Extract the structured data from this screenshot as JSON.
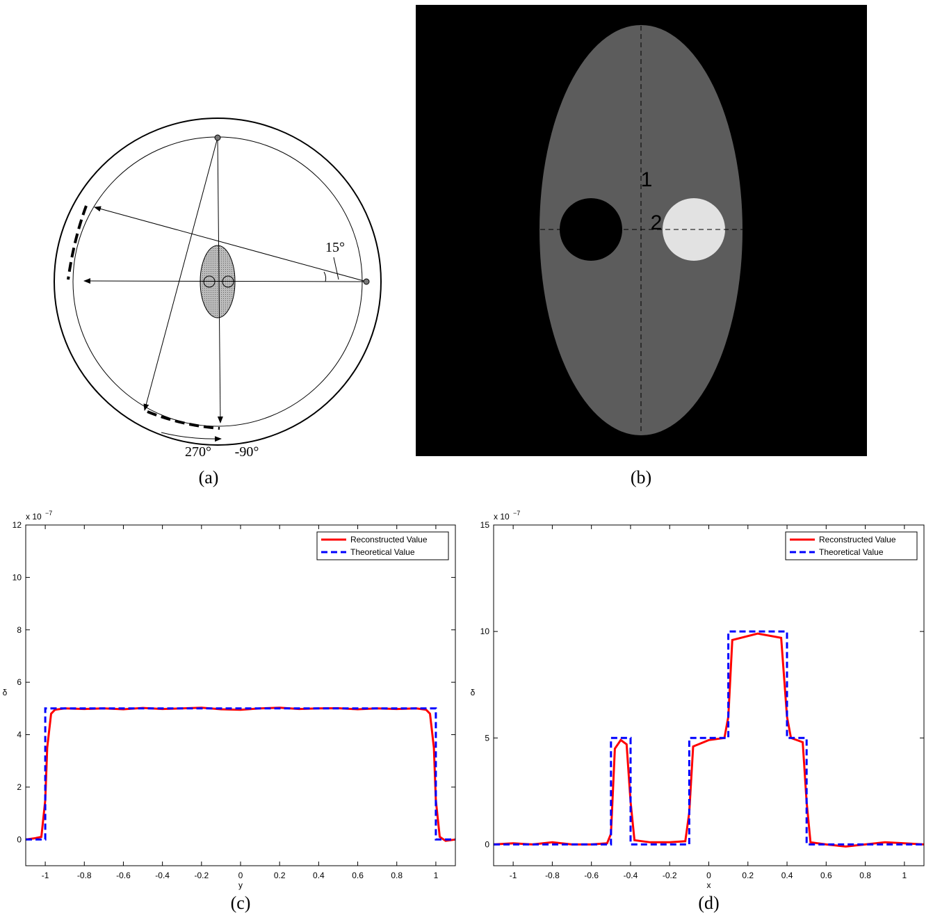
{
  "diagram": {
    "angle_label": "15°",
    "start_label": "270°",
    "end_label": "-90°",
    "caption": "(a)"
  },
  "image": {
    "line1_label": "1",
    "line2_label": "2",
    "caption": "(b)"
  },
  "chart_data": [
    {
      "type": "line",
      "caption": "(c)",
      "xlabel": "y",
      "ylabel": "δ",
      "exponent_base": "x 10",
      "exponent_power": "−7",
      "xlim": [
        -1.1,
        1.1
      ],
      "ylim": [
        -1,
        12
      ],
      "xticks": [
        -1,
        -0.8,
        -0.6,
        -0.4,
        -0.2,
        0,
        0.2,
        0.4,
        0.6,
        0.8,
        1
      ],
      "yticks": [
        0,
        2,
        4,
        6,
        8,
        10,
        12
      ],
      "legend": "upper right",
      "series": [
        {
          "name": "Reconstructed Value",
          "color": "#ff0000",
          "dash": false,
          "x": [
            -1.1,
            -1.05,
            -1.02,
            -1.0,
            -0.99,
            -0.97,
            -0.95,
            -0.9,
            -0.8,
            -0.7,
            -0.6,
            -0.5,
            -0.4,
            -0.3,
            -0.2,
            -0.1,
            0,
            0.1,
            0.2,
            0.3,
            0.4,
            0.5,
            0.6,
            0.7,
            0.8,
            0.9,
            0.95,
            0.97,
            0.99,
            1.0,
            1.02,
            1.05,
            1.1
          ],
          "values": [
            0.0,
            0.05,
            0.1,
            1.5,
            3.5,
            4.8,
            4.95,
            5.0,
            4.98,
            5.0,
            4.97,
            5.02,
            4.98,
            5.0,
            5.03,
            4.97,
            4.95,
            5.0,
            5.03,
            4.98,
            5.0,
            5.01,
            4.97,
            5.0,
            4.98,
            5.0,
            4.95,
            4.8,
            3.5,
            1.5,
            0.1,
            -0.05,
            0.0
          ]
        },
        {
          "name": "Theoretical Value",
          "color": "#0000ff",
          "dash": true,
          "x": [
            -1.1,
            -1.0,
            -1.0,
            1.0,
            1.0,
            1.1
          ],
          "values": [
            0,
            0,
            5,
            5,
            0,
            0
          ]
        }
      ]
    },
    {
      "type": "line",
      "caption": "(d)",
      "xlabel": "x",
      "ylabel": "δ",
      "exponent_base": "x 10",
      "exponent_power": "−7",
      "xlim": [
        -1.1,
        1.1
      ],
      "ylim": [
        -1,
        15
      ],
      "xticks": [
        -1,
        -0.8,
        -0.6,
        -0.4,
        -0.2,
        0,
        0.2,
        0.4,
        0.6,
        0.8,
        1
      ],
      "yticks": [
        0,
        5,
        10,
        15
      ],
      "legend": "upper right",
      "series": [
        {
          "name": "Reconstructed Value",
          "color": "#ff0000",
          "dash": false,
          "x": [
            -1.1,
            -1.0,
            -0.9,
            -0.8,
            -0.7,
            -0.6,
            -0.52,
            -0.5,
            -0.48,
            -0.45,
            -0.42,
            -0.4,
            -0.38,
            -0.3,
            -0.2,
            -0.12,
            -0.1,
            -0.08,
            0,
            0.08,
            0.1,
            0.12,
            0.25,
            0.37,
            0.4,
            0.42,
            0.48,
            0.5,
            0.52,
            0.6,
            0.7,
            0.8,
            0.9,
            1.0,
            1.1
          ],
          "values": [
            0.0,
            0.05,
            0.0,
            0.1,
            0.0,
            0.0,
            0.05,
            0.5,
            4.5,
            4.9,
            4.7,
            2.0,
            0.2,
            0.1,
            0.1,
            0.15,
            1.5,
            4.6,
            4.9,
            5.0,
            6.0,
            9.6,
            9.9,
            9.7,
            6.0,
            5.0,
            4.8,
            2.0,
            0.1,
            0.0,
            -0.1,
            0.0,
            0.1,
            0.05,
            0.0
          ]
        },
        {
          "name": "Theoretical Value",
          "color": "#0000ff",
          "dash": true,
          "x": [
            -1.1,
            -0.5,
            -0.5,
            -0.4,
            -0.4,
            -0.1,
            -0.1,
            0.1,
            0.1,
            0.4,
            0.4,
            0.5,
            0.5,
            1.1
          ],
          "values": [
            0,
            0,
            5,
            5,
            0,
            0,
            5,
            5,
            10,
            10,
            5,
            5,
            0,
            0
          ]
        }
      ]
    }
  ]
}
